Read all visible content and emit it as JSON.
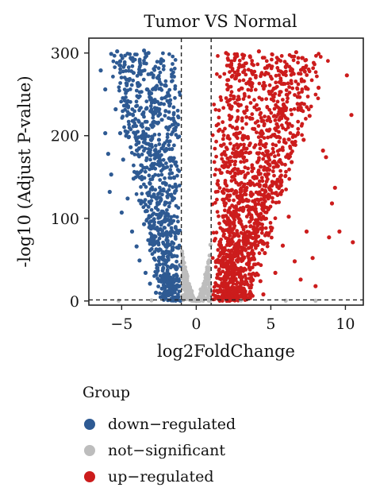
{
  "chart_data": {
    "type": "scatter",
    "title": "Tumor VS Normal",
    "xlabel": "log2FoldChange",
    "ylabel": "-log10 (Adjust P-value)",
    "xlim": [
      -7.2,
      11.2
    ],
    "ylim": [
      -5,
      318
    ],
    "x_ticks": [
      -5,
      0,
      5,
      10
    ],
    "y_ticks": [
      0,
      100,
      200,
      300
    ],
    "x_tick_labels": [
      "−5",
      "0",
      "5",
      "10"
    ],
    "y_tick_labels": [
      "0",
      "100",
      "200",
      "300"
    ],
    "thresholds": {
      "log2fc": [
        -1,
        1
      ],
      "p": 1.3
    },
    "legend": {
      "title": "Group",
      "placement": "bottom",
      "items": [
        {
          "label": "down−regulated",
          "color": "#2e5a93"
        },
        {
          "label": "not−significant",
          "color": "#bdbdbd"
        },
        {
          "label": "up−regulated",
          "color": "#cc1c1c"
        }
      ]
    },
    "series": [
      {
        "name": "down−regulated",
        "color": "#2e5a93",
        "points": [
          [
            -6.4,
            279
          ],
          [
            -6.1,
            256
          ],
          [
            -5.7,
            299
          ],
          [
            -5.3,
            302
          ],
          [
            -5.1,
            290
          ],
          [
            -4.8,
            286
          ],
          [
            -4.4,
            294
          ],
          [
            -4.2,
            276
          ],
          [
            -3.5,
            303
          ],
          [
            -3.2,
            300
          ],
          [
            -6.1,
            203
          ],
          [
            -5.9,
            178
          ],
          [
            -5.7,
            153
          ],
          [
            -5.4,
            232
          ],
          [
            -5.1,
            203
          ],
          [
            -4.9,
            171
          ],
          [
            -4.7,
            236
          ],
          [
            -4.4,
            186
          ],
          [
            -4.2,
            148
          ],
          [
            -4.1,
            212
          ],
          [
            -3.9,
            260
          ],
          [
            -3.9,
            177
          ],
          [
            -3.7,
            121
          ],
          [
            -3.6,
            226
          ],
          [
            -3.5,
            93
          ],
          [
            -3.3,
            256
          ],
          [
            -3.2,
            190
          ],
          [
            -3.1,
            142
          ],
          [
            -3.0,
            74
          ],
          [
            -2.9,
            216
          ],
          [
            -2.8,
            166
          ],
          [
            -2.7,
            113
          ],
          [
            -2.6,
            40
          ],
          [
            -2.6,
            270
          ],
          [
            -2.5,
            195
          ],
          [
            -2.4,
            87
          ],
          [
            -2.3,
            245
          ],
          [
            -2.3,
            15
          ],
          [
            -2.2,
            135
          ],
          [
            -2.1,
            58
          ],
          [
            -2.0,
            210
          ],
          [
            -2.0,
            30
          ],
          [
            -1.9,
            105
          ],
          [
            -1.8,
            172
          ],
          [
            -1.7,
            8
          ],
          [
            -1.6,
            62
          ],
          [
            -1.5,
            42
          ],
          [
            -1.4,
            18
          ],
          [
            -1.3,
            27
          ],
          [
            -1.2,
            5
          ],
          [
            -5.8,
            132
          ],
          [
            -5.0,
            107
          ],
          [
            -4.6,
            124
          ],
          [
            -4.3,
            84
          ],
          [
            -4.0,
            66
          ],
          [
            -3.8,
            49
          ],
          [
            -3.4,
            34
          ],
          [
            -3.1,
            21
          ],
          [
            -2.7,
            10
          ],
          [
            -2.2,
            4
          ]
        ]
      },
      {
        "name": "not−significant",
        "color": "#bdbdbd",
        "points": [
          [
            -0.9,
            48
          ],
          [
            -0.8,
            35
          ],
          [
            -0.7,
            24
          ],
          [
            -0.6,
            16
          ],
          [
            -0.5,
            10
          ],
          [
            -0.4,
            6
          ],
          [
            -0.3,
            3
          ],
          [
            -0.2,
            1
          ],
          [
            -0.1,
            1
          ],
          [
            0.0,
            0
          ],
          [
            0.1,
            1
          ],
          [
            0.2,
            2
          ],
          [
            0.3,
            4
          ],
          [
            0.4,
            7
          ],
          [
            0.5,
            12
          ],
          [
            0.6,
            19
          ],
          [
            0.7,
            28
          ],
          [
            0.8,
            40
          ],
          [
            0.9,
            55
          ],
          [
            -0.95,
            60
          ],
          [
            0.95,
            68
          ],
          [
            -0.6,
            30
          ],
          [
            0.6,
            32
          ],
          [
            -0.3,
            12
          ],
          [
            0.3,
            14
          ],
          [
            -5.2,
            0.5
          ],
          [
            -3.0,
            0.8
          ],
          [
            3.0,
            0.6
          ],
          [
            6.0,
            0.4
          ],
          [
            8.0,
            0.3
          ]
        ]
      },
      {
        "name": "up−regulated",
        "color": "#cc1c1c",
        "points": [
          [
            2.0,
            300
          ],
          [
            2.6,
            294
          ],
          [
            3.1,
            298
          ],
          [
            3.6,
            296
          ],
          [
            4.2,
            302
          ],
          [
            4.9,
            285
          ],
          [
            5.5,
            292
          ],
          [
            6.0,
            283
          ],
          [
            6.7,
            301
          ],
          [
            7.1,
            294
          ],
          [
            2.1,
            256
          ],
          [
            2.3,
            221
          ],
          [
            2.5,
            184
          ],
          [
            2.8,
            238
          ],
          [
            3.1,
            197
          ],
          [
            3.3,
            152
          ],
          [
            3.6,
            262
          ],
          [
            3.9,
            208
          ],
          [
            4.1,
            168
          ],
          [
            4.4,
            244
          ],
          [
            4.7,
            181
          ],
          [
            4.9,
            127
          ],
          [
            5.2,
            257
          ],
          [
            5.4,
            214
          ],
          [
            5.7,
            146
          ],
          [
            6.0,
            231
          ],
          [
            6.4,
            168
          ],
          [
            6.8,
            247
          ],
          [
            7.2,
            195
          ],
          [
            7.6,
            224
          ],
          [
            8.2,
            258
          ],
          [
            8.5,
            182
          ],
          [
            8.7,
            174
          ],
          [
            9.1,
            118
          ],
          [
            9.6,
            84
          ],
          [
            10.1,
            273
          ],
          [
            10.4,
            225
          ],
          [
            10.5,
            71
          ],
          [
            9.3,
            137
          ],
          [
            8.9,
            77
          ],
          [
            1.2,
            12
          ],
          [
            1.4,
            28
          ],
          [
            1.5,
            47
          ],
          [
            1.7,
            64
          ],
          [
            1.8,
            85
          ],
          [
            2.0,
            103
          ],
          [
            2.2,
            122
          ],
          [
            2.4,
            35
          ],
          [
            2.6,
            58
          ],
          [
            2.9,
            96
          ],
          [
            3.2,
            12
          ],
          [
            3.5,
            44
          ],
          [
            3.8,
            76
          ],
          [
            4.0,
            108
          ],
          [
            4.3,
            24
          ],
          [
            4.6,
            58
          ],
          [
            5.0,
            89
          ],
          [
            5.3,
            34
          ],
          [
            5.8,
            67
          ],
          [
            6.2,
            102
          ],
          [
            6.6,
            48
          ],
          [
            7.0,
            26
          ],
          [
            7.4,
            84
          ],
          [
            7.8,
            52
          ],
          [
            8.0,
            18
          ],
          [
            1.3,
            6
          ],
          [
            1.6,
            18
          ],
          [
            2.7,
            5
          ],
          [
            3.4,
            3
          ],
          [
            4.5,
            8
          ]
        ]
      }
    ]
  }
}
